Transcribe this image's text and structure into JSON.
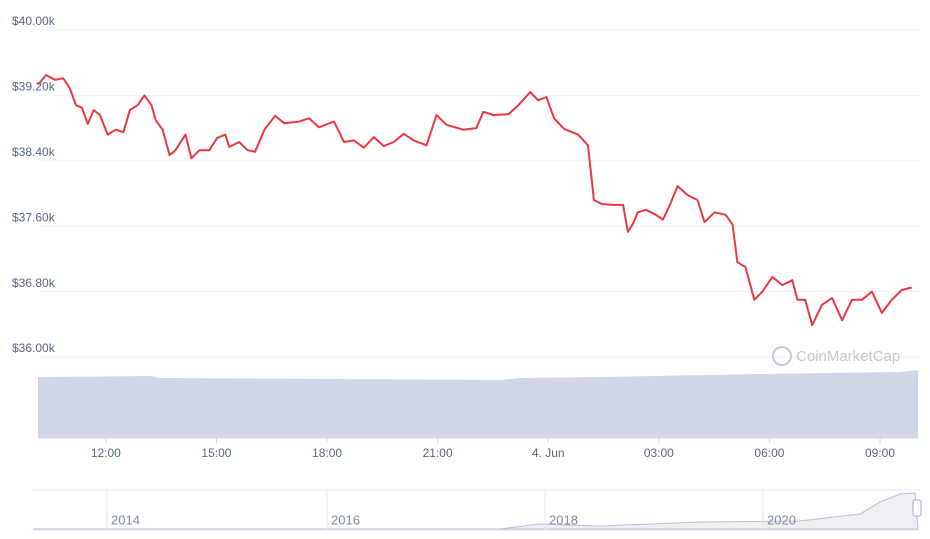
{
  "chart_data": {
    "type": "line",
    "x": [
      10.16,
      10.38,
      10.62,
      10.84,
      11.02,
      11.19,
      11.35,
      11.51,
      11.67,
      11.84,
      12.05,
      12.27,
      12.48,
      12.65,
      12.86,
      13.05,
      13.24,
      13.35,
      13.54,
      13.73,
      13.89,
      14.16,
      14.32,
      14.54,
      14.81,
      15.02,
      15.24,
      15.35,
      15.62,
      15.84,
      16.05,
      16.3,
      16.59,
      16.84,
      17.24,
      17.51,
      17.78,
      18.19,
      18.46,
      18.73,
      19.0,
      19.27,
      19.54,
      19.81,
      20.08,
      20.35,
      20.7,
      20.97,
      21.24,
      21.7,
      22.05,
      22.24,
      22.51,
      22.92,
      23.19,
      23.51,
      23.73,
      23.95,
      24.16,
      24.43,
      24.81,
      25.08,
      25.24,
      25.46,
      25.76,
      26.03,
      26.16,
      26.3,
      26.43,
      26.65,
      26.92,
      27.11,
      27.3,
      27.51,
      27.78,
      28.05,
      28.24,
      28.51,
      28.81,
      29.0,
      29.13,
      29.35,
      29.59,
      29.81,
      30.08,
      30.35,
      30.62,
      30.76,
      30.97,
      31.16,
      31.43,
      31.7,
      31.97,
      32.24,
      32.51,
      32.78,
      33.05,
      33.32,
      33.59,
      33.86
    ],
    "values": [
      39330,
      39450,
      39390,
      39410,
      39290,
      39080,
      39050,
      38850,
      39020,
      38960,
      38720,
      38780,
      38750,
      39020,
      39080,
      39200,
      39080,
      38900,
      38780,
      38470,
      38530,
      38720,
      38430,
      38530,
      38530,
      38680,
      38720,
      38570,
      38630,
      38530,
      38510,
      38780,
      38950,
      38860,
      38880,
      38920,
      38810,
      38880,
      38630,
      38650,
      38560,
      38690,
      38580,
      38630,
      38730,
      38650,
      38590,
      38960,
      38840,
      38780,
      38800,
      39000,
      38960,
      38970,
      39080,
      39240,
      39140,
      39180,
      38920,
      38790,
      38720,
      38590,
      37920,
      37870,
      37860,
      37860,
      37530,
      37630,
      37770,
      37800,
      37740,
      37680,
      37860,
      38090,
      37980,
      37920,
      37650,
      37770,
      37740,
      37620,
      37160,
      37100,
      36700,
      36800,
      36980,
      36880,
      36940,
      36700,
      36700,
      36390,
      36640,
      36720,
      36450,
      36700,
      36700,
      36800,
      36540,
      36700,
      36820,
      36850
    ],
    "color": "#ea3943",
    "xlim": [
      10.16,
      34.03
    ],
    "xticks": [
      {
        "value": 12,
        "label": "12:00"
      },
      {
        "value": 15,
        "label": "15:00"
      },
      {
        "value": 18,
        "label": "18:00"
      },
      {
        "value": 21,
        "label": "21:00"
      },
      {
        "value": 24,
        "label": "4. Jun"
      },
      {
        "value": 27,
        "label": "03:00"
      },
      {
        "value": 30,
        "label": "06:00"
      },
      {
        "value": 33,
        "label": "09:00"
      }
    ],
    "ylim": [
      36000,
      40000
    ],
    "yticks": [
      {
        "value": 36000,
        "label": "$36.00k"
      },
      {
        "value": 36800,
        "label": "$36.80k"
      },
      {
        "value": 37600,
        "label": "$37.60k"
      },
      {
        "value": 38400,
        "label": "$38.40k"
      },
      {
        "value": 39200,
        "label": "$39.20k"
      },
      {
        "value": 40000,
        "label": "$40.00k"
      }
    ],
    "grid": true,
    "watermark": "CoinMarketCap",
    "navigator_labels": [
      "2014",
      "2016",
      "2018",
      "2020"
    ]
  }
}
